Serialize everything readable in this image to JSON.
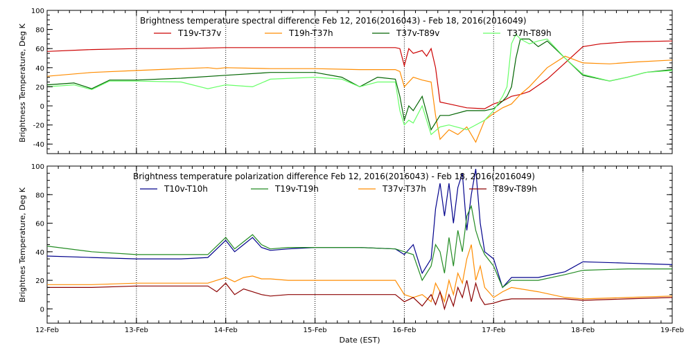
{
  "chart_data": [
    {
      "type": "line",
      "title": "Brightness temperature spectral difference     Feb 12, 2016(2016043) - Feb 18, 2016(2016049)",
      "ylabel": "Brightness Temperature, Deg K",
      "xlabel": "",
      "xlim": [
        0,
        7
      ],
      "ylim": [
        -50,
        100
      ],
      "yticks": [
        -40,
        -20,
        0,
        20,
        40,
        60,
        80,
        100
      ],
      "xtick_labels": [],
      "grid": "vertical dotted lines at day boundaries",
      "legend_position": "top inside, two rows",
      "series": [
        {
          "name": "T19v-T37v",
          "color": "#cc0000",
          "x": [
            0,
            0.5,
            1,
            1.5,
            2,
            2.5,
            3,
            3.5,
            3.9,
            3.95,
            4.0,
            4.05,
            4.1,
            4.2,
            4.25,
            4.3,
            4.35,
            4.4,
            4.5,
            4.7,
            4.9,
            5.0,
            5.1,
            5.2,
            5.3,
            5.4,
            5.6,
            5.8,
            6.0,
            6.2,
            6.5,
            7
          ],
          "y": [
            57,
            59,
            60,
            60,
            61,
            61,
            61,
            61,
            61,
            60,
            42,
            60,
            55,
            58,
            52,
            60,
            40,
            4,
            2,
            -2,
            -3,
            2,
            5,
            10,
            12,
            15,
            28,
            45,
            62,
            65,
            67,
            68
          ]
        },
        {
          "name": "T19h-T37h",
          "color": "#ff8c00",
          "x": [
            0,
            0.5,
            1,
            1.5,
            1.8,
            1.9,
            2,
            2.5,
            3,
            3.5,
            3.9,
            3.95,
            4.0,
            4.1,
            4.2,
            4.3,
            4.35,
            4.4,
            4.5,
            4.6,
            4.7,
            4.8,
            4.9,
            5.0,
            5.1,
            5.2,
            5.3,
            5.4,
            5.6,
            5.8,
            6.0,
            6.3,
            6.6,
            7
          ],
          "y": [
            31,
            35,
            37,
            39,
            40,
            39,
            40,
            39,
            39,
            38,
            38,
            36,
            20,
            30,
            27,
            25,
            -10,
            -35,
            -25,
            -30,
            -22,
            -38,
            -15,
            -8,
            -2,
            2,
            12,
            20,
            40,
            52,
            45,
            44,
            46,
            48
          ]
        },
        {
          "name": "T37v-T89v",
          "color": "#006400",
          "x": [
            0,
            0.3,
            0.5,
            0.7,
            1,
            1.5,
            2,
            2.5,
            3,
            3.3,
            3.5,
            3.7,
            3.9,
            3.95,
            4.0,
            4.05,
            4.1,
            4.2,
            4.3,
            4.4,
            4.5,
            4.7,
            4.9,
            5.0,
            5.1,
            5.15,
            5.2,
            5.25,
            5.3,
            5.4,
            5.5,
            5.6,
            5.8,
            6.0,
            6.3,
            6.5,
            6.7,
            7
          ],
          "y": [
            22,
            24,
            18,
            27,
            27,
            29,
            32,
            35,
            35,
            30,
            20,
            30,
            28,
            10,
            -15,
            0,
            -5,
            10,
            -25,
            -10,
            -10,
            -5,
            -5,
            -3,
            5,
            10,
            20,
            50,
            70,
            70,
            62,
            68,
            50,
            32,
            26,
            30,
            35,
            38
          ]
        },
        {
          "name": "T37h-T89h",
          "color": "#66ff66",
          "x": [
            0,
            0.3,
            0.5,
            0.7,
            1,
            1.5,
            1.8,
            2,
            2.3,
            2.5,
            3,
            3.3,
            3.5,
            3.7,
            3.9,
            3.95,
            4.0,
            4.05,
            4.1,
            4.2,
            4.3,
            4.4,
            4.5,
            4.7,
            4.9,
            5.0,
            5.1,
            5.15,
            5.2,
            5.25,
            5.3,
            5.4,
            5.5,
            5.6,
            5.8,
            6.0,
            6.3,
            6.5,
            6.7,
            7
          ],
          "y": [
            20,
            22,
            17,
            26,
            26,
            25,
            18,
            22,
            20,
            28,
            30,
            28,
            20,
            25,
            25,
            -5,
            -20,
            -15,
            -18,
            0,
            -30,
            -22,
            -20,
            -25,
            -15,
            -5,
            10,
            20,
            65,
            75,
            70,
            65,
            68,
            70,
            50,
            33,
            26,
            30,
            35,
            37
          ]
        }
      ]
    },
    {
      "type": "line",
      "title": "Brightness temperature polarization difference     Feb 12, 2016(2016043) - Feb 18, 2016(2016049)",
      "ylabel": "Brightnes Temperature, Deg K",
      "xlabel": "Date (EST)",
      "xlim": [
        0,
        7
      ],
      "ylim": [
        -10,
        100
      ],
      "yticks": [
        0,
        20,
        40,
        60,
        80,
        100
      ],
      "xtick_labels": [
        "12-Feb",
        "13-Feb",
        "14-Feb",
        "15-Feb",
        "16-Feb",
        "17-Feb",
        "18-Feb",
        "19-Feb"
      ],
      "grid": "vertical dotted lines at day boundaries",
      "legend_position": "top inside, one row",
      "series": [
        {
          "name": "T10v-T10h",
          "color": "#00008b",
          "x": [
            0,
            0.5,
            1,
            1.5,
            1.8,
            1.9,
            2.0,
            2.1,
            2.2,
            2.3,
            2.4,
            2.5,
            2.7,
            3,
            3.5,
            3.9,
            4.0,
            4.1,
            4.2,
            4.3,
            4.35,
            4.4,
            4.45,
            4.5,
            4.55,
            4.6,
            4.65,
            4.7,
            4.75,
            4.8,
            4.85,
            4.9,
            5.0,
            5.1,
            5.2,
            5.5,
            5.8,
            6.0,
            6.5,
            7
          ],
          "y": [
            37,
            36,
            35,
            35,
            36,
            42,
            48,
            40,
            45,
            50,
            43,
            41,
            42,
            43,
            43,
            42,
            38,
            45,
            25,
            35,
            70,
            88,
            65,
            88,
            60,
            85,
            95,
            55,
            80,
            98,
            60,
            40,
            35,
            15,
            22,
            22,
            26,
            33,
            32,
            31
          ]
        },
        {
          "name": "T19v-T19h",
          "color": "#228b22",
          "x": [
            0,
            0.5,
            1,
            1.5,
            1.8,
            1.9,
            2.0,
            2.1,
            2.2,
            2.3,
            2.4,
            2.5,
            2.7,
            3,
            3.5,
            3.9,
            4.0,
            4.1,
            4.2,
            4.3,
            4.35,
            4.4,
            4.45,
            4.5,
            4.55,
            4.6,
            4.65,
            4.7,
            4.75,
            4.8,
            4.85,
            4.9,
            5.0,
            5.1,
            5.2,
            5.5,
            5.8,
            6.0,
            6.5,
            7
          ],
          "y": [
            44,
            40,
            38,
            38,
            38,
            44,
            50,
            42,
            47,
            52,
            45,
            42,
            43,
            43,
            43,
            42,
            40,
            38,
            20,
            30,
            45,
            40,
            25,
            50,
            30,
            55,
            40,
            65,
            72,
            55,
            45,
            38,
            30,
            15,
            20,
            20,
            24,
            27,
            28,
            28
          ]
        },
        {
          "name": "T37v-T37h",
          "color": "#ff8c00",
          "x": [
            0,
            0.5,
            1,
            1.5,
            1.8,
            1.9,
            2.0,
            2.1,
            2.2,
            2.3,
            2.4,
            2.5,
            2.7,
            3,
            3.5,
            3.9,
            4.0,
            4.1,
            4.2,
            4.3,
            4.35,
            4.4,
            4.45,
            4.5,
            4.55,
            4.6,
            4.65,
            4.7,
            4.75,
            4.8,
            4.85,
            4.9,
            5.0,
            5.1,
            5.2,
            5.5,
            5.8,
            6.0,
            6.5,
            7
          ],
          "y": [
            17,
            17,
            18,
            18,
            18,
            20,
            22,
            19,
            22,
            23,
            21,
            21,
            20,
            20,
            20,
            20,
            10,
            8,
            10,
            5,
            18,
            12,
            5,
            20,
            10,
            25,
            18,
            35,
            45,
            20,
            30,
            15,
            8,
            12,
            15,
            12,
            8,
            7,
            8,
            9
          ]
        },
        {
          "name": "T89v-T89h",
          "color": "#8b0000",
          "x": [
            0,
            0.5,
            1,
            1.5,
            1.8,
            1.9,
            2.0,
            2.1,
            2.2,
            2.3,
            2.4,
            2.5,
            2.7,
            3,
            3.5,
            3.9,
            4.0,
            4.1,
            4.2,
            4.3,
            4.35,
            4.4,
            4.45,
            4.5,
            4.55,
            4.6,
            4.65,
            4.7,
            4.75,
            4.8,
            4.85,
            4.9,
            5.0,
            5.1,
            5.2,
            5.5,
            5.8,
            6.0,
            6.5,
            7
          ],
          "y": [
            15,
            15,
            16,
            16,
            16,
            12,
            18,
            10,
            14,
            12,
            10,
            9,
            10,
            10,
            10,
            10,
            5,
            8,
            2,
            10,
            3,
            12,
            0,
            10,
            2,
            15,
            8,
            20,
            5,
            18,
            8,
            3,
            4,
            6,
            7,
            7,
            7,
            6,
            7,
            8
          ]
        }
      ]
    }
  ]
}
